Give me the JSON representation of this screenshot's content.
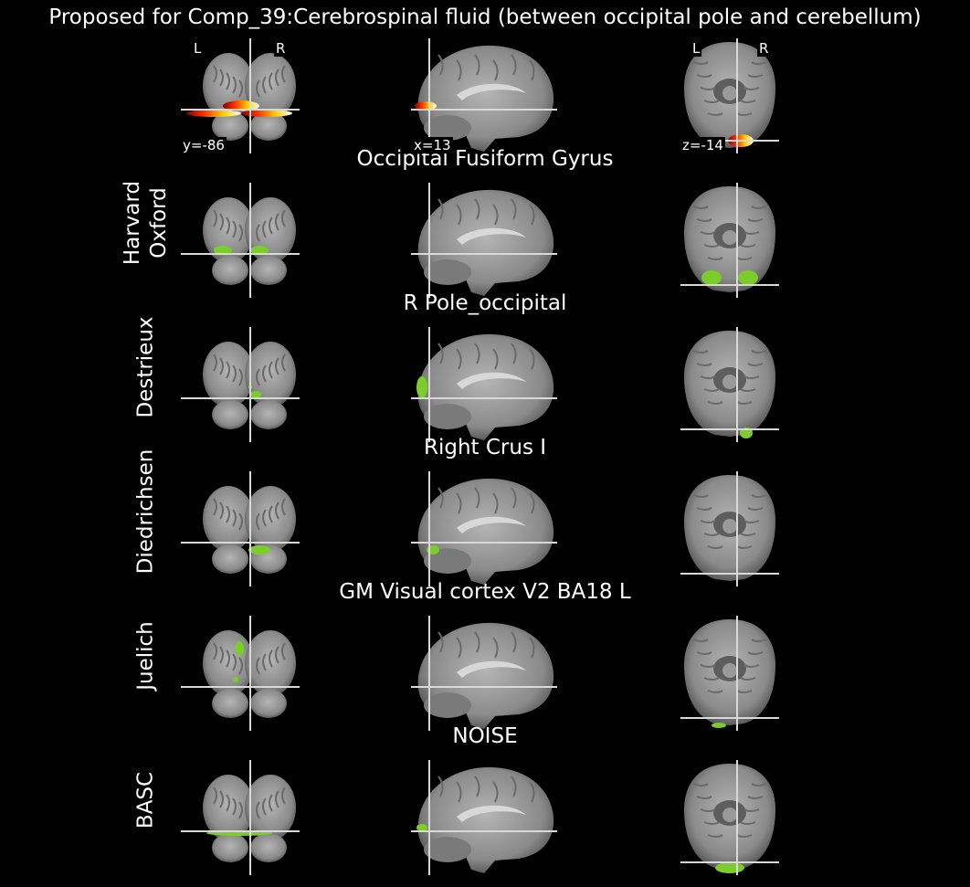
{
  "title": "Proposed for Comp_39:Cerebrospinal fluid (between occipital pole and cerebellum)",
  "coords": {
    "y": "y=-86",
    "x": "x=13",
    "z": "z=-14"
  },
  "orientation": {
    "left": "L",
    "right": "R"
  },
  "colors": {
    "background": "#000000",
    "crosshair": "#d9d9d9",
    "brain_tissue": "#8a8a8a",
    "atlas_overlay": "#7ccd2c",
    "component_hot": [
      "#8b0000",
      "#ff3300",
      "#ffcc00",
      "#ffffff"
    ]
  },
  "rows": [
    {
      "atlas": "",
      "region": ""
    },
    {
      "atlas": "Harvard\nOxford",
      "region": "Occipital Fusiform Gyrus"
    },
    {
      "atlas": "Destrieux",
      "region": "R Pole_occipital"
    },
    {
      "atlas": "Diedrichsen",
      "region": "Right Crus I"
    },
    {
      "atlas": "Juelich",
      "region": "GM Visual cortex V2 BA18 L"
    },
    {
      "atlas": "BASC",
      "region": "NOISE"
    }
  ]
}
